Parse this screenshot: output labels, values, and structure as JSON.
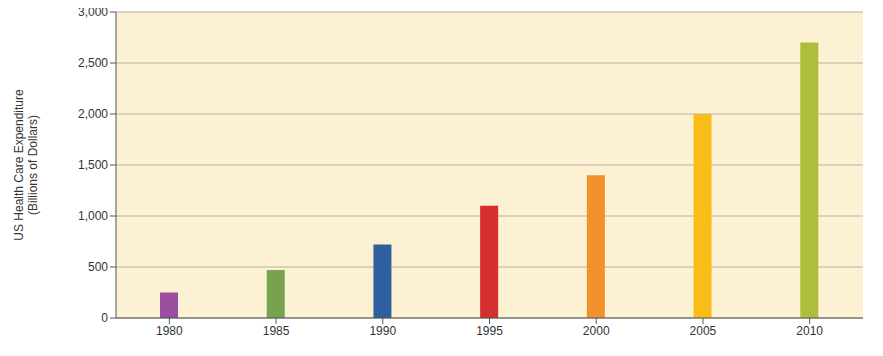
{
  "chart_data": {
    "type": "bar",
    "ylabel": "US Health Care Expenditure (Billions of Dollars)",
    "categories": [
      "1980",
      "1985",
      "1990",
      "1995",
      "2000",
      "2005",
      "2010"
    ],
    "values": [
      250,
      470,
      720,
      1100,
      1400,
      2000,
      2700
    ],
    "colors": [
      "#9c4fa0",
      "#77a24e",
      "#2e5f9e",
      "#d52f2f",
      "#f0912b",
      "#f9bd19",
      "#aebd3a"
    ],
    "ylim": [
      0,
      3000
    ],
    "yticks": [
      0,
      500,
      {
        "value": 1000,
        "label": "1,000"
      },
      {
        "value": 1500,
        "label": "1,500"
      },
      {
        "value": 2000,
        "label": "2,000"
      },
      {
        "value": 2500,
        "label": "2,500"
      },
      {
        "value": 3000,
        "label": "3,000"
      }
    ],
    "grid": true
  }
}
